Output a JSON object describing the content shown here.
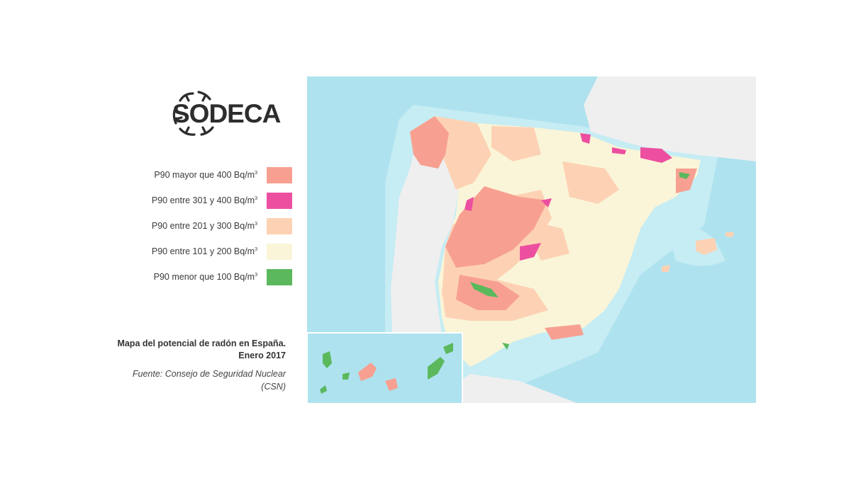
{
  "logo": {
    "text": "SODECA",
    "registered": "®"
  },
  "legend": {
    "items": [
      {
        "label": "P90 mayor que 400 Bq/m",
        "sup": "3",
        "color": "#f7a091"
      },
      {
        "label": "P90 entre 301 y 400 Bq/m",
        "sup": "3",
        "color": "#ec4fa0"
      },
      {
        "label": "P90 entre 201 y 300 Bq/m",
        "sup": "3",
        "color": "#fdd2b4"
      },
      {
        "label": "P90 entre 101 y 200 Bq/m",
        "sup": "3",
        "color": "#faf5d8"
      },
      {
        "label": "P90 menor que 100 Bq/m",
        "sup": "3",
        "color": "#5bb85d"
      }
    ]
  },
  "caption": {
    "title": "Mapa del potencial de radón en España. Enero 2017",
    "source": "Fuente: Consejo de Seguridad Nuclear (CSN)"
  },
  "map": {
    "colors": {
      "sea_deep": "#aee2ef",
      "sea_shallow": "#c6ecf4",
      "sea_coast": "#dff4f8",
      "foreign_land": "#efefef",
      "inset_border": "#ffffff"
    }
  }
}
